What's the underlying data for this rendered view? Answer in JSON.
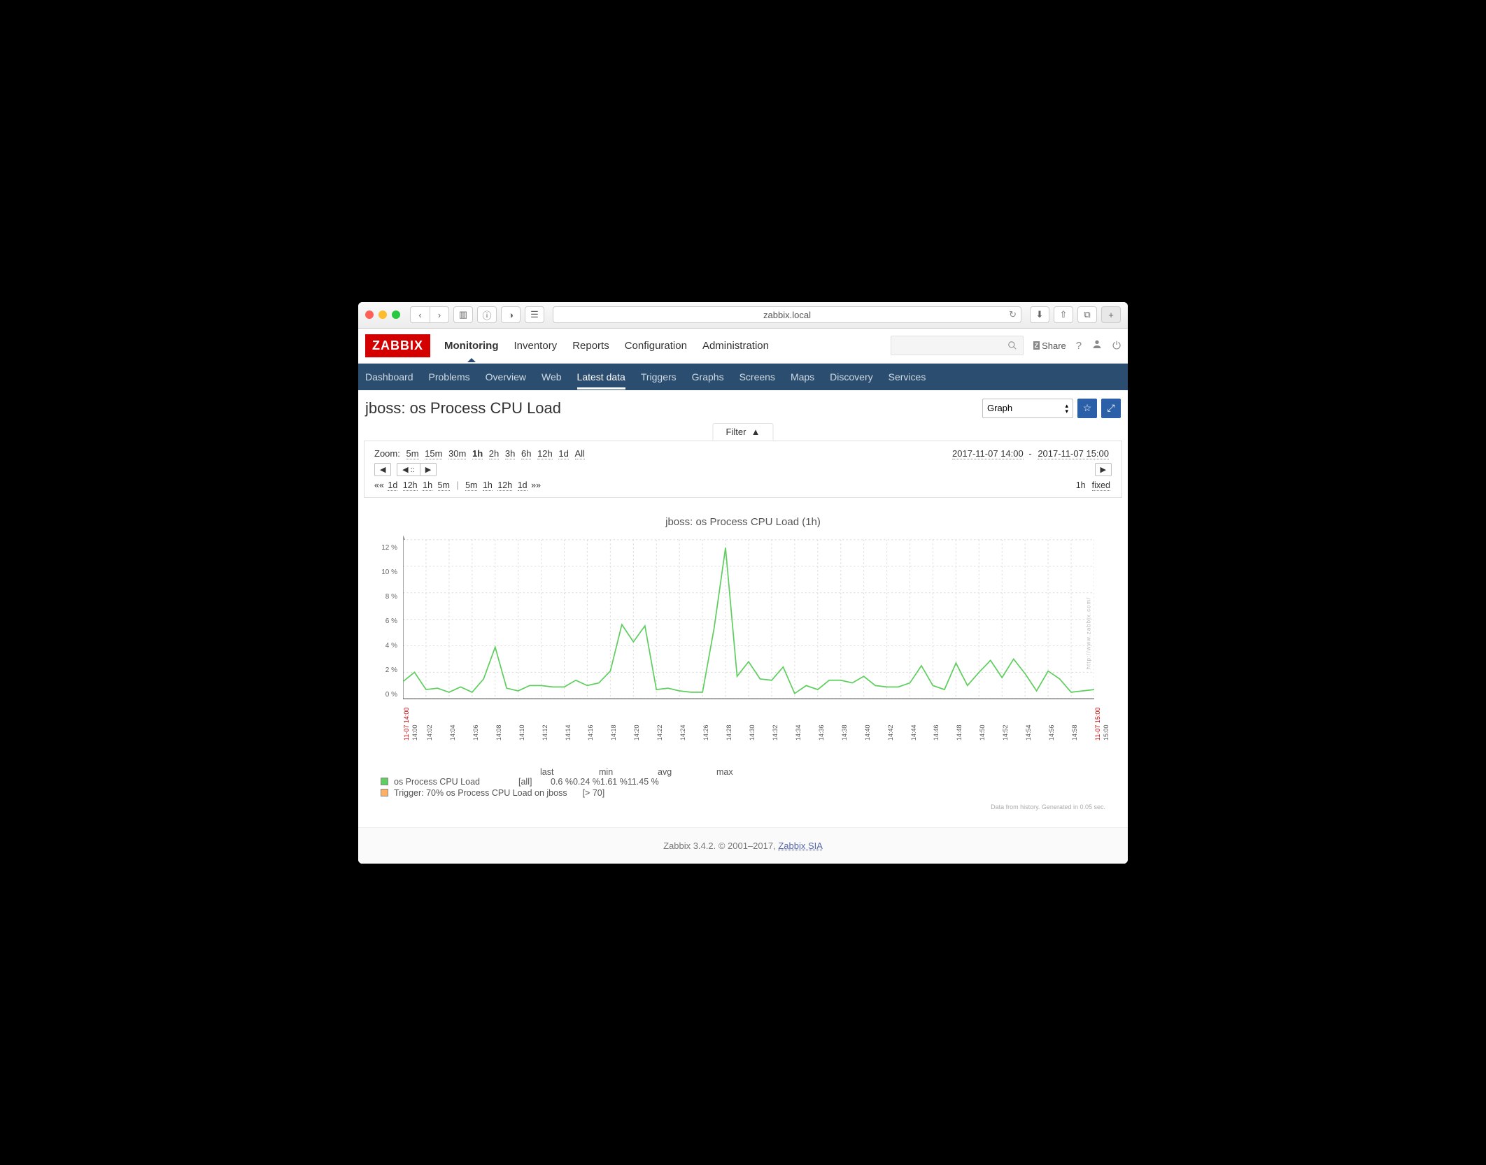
{
  "browser": {
    "url": "zabbix.local"
  },
  "header": {
    "logo": "ZABBIX",
    "main_tabs": [
      "Monitoring",
      "Inventory",
      "Reports",
      "Configuration",
      "Administration"
    ],
    "active_main": 0,
    "share": "Share",
    "sub_tabs": [
      "Dashboard",
      "Problems",
      "Overview",
      "Web",
      "Latest data",
      "Triggers",
      "Graphs",
      "Screens",
      "Maps",
      "Discovery",
      "Services"
    ],
    "active_sub": 4
  },
  "page": {
    "title": "jboss: os Process CPU Load",
    "view_select": "Graph"
  },
  "filter": {
    "label": "Filter",
    "zoom_label": "Zoom:",
    "zooms": [
      "5m",
      "15m",
      "30m",
      "1h",
      "2h",
      "3h",
      "6h",
      "12h",
      "1d",
      "All"
    ],
    "zoom_active": "1h",
    "date_from": "2017-11-07 14:00",
    "date_to": "2017-11-07 15:00",
    "back_left": [
      "1d",
      "12h",
      "1h",
      "5m"
    ],
    "fwd_right": [
      "5m",
      "1h",
      "12h",
      "1d"
    ],
    "fixed_label": "fixed",
    "fixed_duration": "1h"
  },
  "chart": {
    "title": "jboss: os Process CPU Load (1h)",
    "type": "line",
    "ylim": [
      0,
      12
    ],
    "ytick_step": 2,
    "y_suffix": " %",
    "line_color": "#5fce5f",
    "grid_color": "#dcdcdc",
    "axis_color": "#555555",
    "background": "#ffffff",
    "line_width": 1.6,
    "x_ticks": [
      "14:00",
      "14:02",
      "14:04",
      "14:06",
      "14:08",
      "14:10",
      "14:12",
      "14:14",
      "14:16",
      "14:18",
      "14:20",
      "14:22",
      "14:24",
      "14:26",
      "14:28",
      "14:30",
      "14:32",
      "14:34",
      "14:36",
      "14:38",
      "14:40",
      "14:42",
      "14:44",
      "14:46",
      "14:48",
      "14:50",
      "14:52",
      "14:54",
      "14:56",
      "14:58",
      "15:00"
    ],
    "x_date_label": "11-07",
    "values": [
      1.3,
      2.0,
      0.7,
      0.8,
      0.5,
      0.9,
      0.5,
      1.5,
      3.9,
      0.8,
      0.6,
      1.0,
      1.0,
      0.9,
      0.9,
      1.4,
      1.0,
      1.2,
      2.1,
      5.6,
      4.3,
      5.5,
      0.7,
      0.8,
      0.6,
      0.5,
      0.5,
      5.3,
      11.4,
      1.7,
      2.8,
      1.5,
      1.4,
      2.4,
      0.4,
      1.0,
      0.7,
      1.4,
      1.4,
      1.2,
      1.7,
      1.0,
      0.9,
      0.9,
      1.2,
      2.5,
      1.0,
      0.7,
      2.7,
      1.0,
      2.0,
      2.9,
      1.6,
      3.0,
      1.9,
      0.6,
      2.1,
      1.5,
      0.5,
      0.6,
      0.7
    ]
  },
  "legend": {
    "series_name": "os Process CPU Load",
    "scope": "[all]",
    "stat_headers": [
      "last",
      "min",
      "avg",
      "max"
    ],
    "stats": [
      "0.6 %",
      "0.24 %",
      "1.61 %",
      "11.45 %"
    ],
    "trigger_name": "Trigger: 70% os Process CPU Load on jboss",
    "trigger_cond": "[> 70]"
  },
  "footnote": "Data from history. Generated in 0.05 sec.",
  "watermark": "http://www.zabbix.com/",
  "footer": {
    "text": "Zabbix 3.4.2. © 2001–2017, ",
    "link": "Zabbix SIA"
  }
}
